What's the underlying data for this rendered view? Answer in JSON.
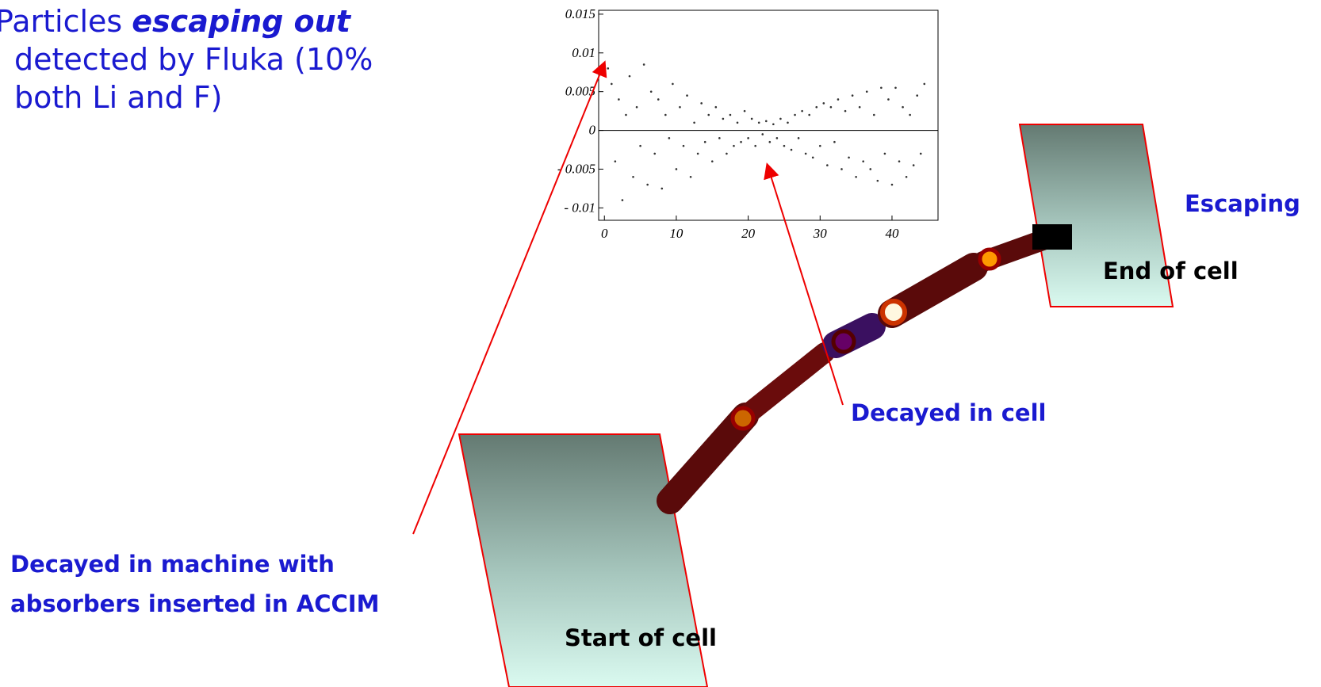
{
  "intro": {
    "line1_plain": "Particles ",
    "line1_emph": "escaping out",
    "line2": "detected by Fluka (10%",
    "line3": "both Li and F)"
  },
  "labels": {
    "escaping": "Escaping",
    "end_of_cell": "End of cell",
    "decayed_in_cell": "Decayed in cell",
    "decayed_machine_1": "Decayed in machine with",
    "decayed_machine_2": "absorbers inserted in ACCIM",
    "start_of_cell": "Start of cell"
  },
  "chart_data": {
    "type": "scatter",
    "color": "#333333",
    "xlim": [
      -0.8,
      46.4
    ],
    "ylim": [
      -0.0116,
      0.0155
    ],
    "xticks": [
      0,
      10,
      20,
      30,
      40
    ],
    "yticks": [
      0.015,
      0.01,
      0.005,
      0,
      {
        "value": -0.005,
        "label": "- 0.005"
      },
      {
        "value": -0.01,
        "label": "- 0.01"
      }
    ],
    "x": [
      0.5,
      1,
      1.5,
      2,
      2.5,
      3,
      3.5,
      4,
      4.5,
      5,
      5.5,
      6,
      6.5,
      7,
      7.5,
      8,
      8.5,
      9,
      9.5,
      10,
      10.5,
      11,
      11.5,
      12,
      12.5,
      13,
      13.5,
      14,
      14.5,
      15,
      15.5,
      16,
      16.5,
      17,
      17.5,
      18,
      18.5,
      19,
      19.5,
      20,
      20.5,
      21,
      21.5,
      22,
      22.5,
      23,
      23.5,
      24,
      24.5,
      25,
      25.5,
      26,
      26.5,
      27,
      27.5,
      28,
      28.5,
      29,
      29.5,
      30,
      30.5,
      31,
      31.5,
      32,
      32.5,
      33,
      33.5,
      34,
      34.5,
      35,
      35.5,
      36,
      36.5,
      37,
      37.5,
      38,
      38.5,
      39,
      39.5,
      40,
      40.5,
      41,
      41.5,
      42,
      42.5,
      43,
      43.5,
      44,
      44.5
    ],
    "values": [
      0.008,
      0.006,
      -0.004,
      0.004,
      -0.009,
      0.002,
      0.007,
      -0.006,
      0.003,
      -0.002,
      0.0085,
      -0.007,
      0.005,
      -0.003,
      0.004,
      -0.0075,
      0.002,
      -0.001,
      0.006,
      -0.005,
      0.003,
      -0.002,
      0.0045,
      -0.006,
      0.001,
      -0.003,
      0.0035,
      -0.0015,
      0.002,
      -0.004,
      0.003,
      -0.001,
      0.0015,
      -0.003,
      0.002,
      -0.002,
      0.001,
      -0.0015,
      0.0025,
      -0.001,
      0.0015,
      -0.002,
      0.001,
      -0.0005,
      0.0012,
      -0.0015,
      0.0008,
      -0.001,
      0.0015,
      -0.002,
      0.001,
      -0.0025,
      0.002,
      -0.001,
      0.0025,
      -0.003,
      0.002,
      -0.0035,
      0.003,
      -0.002,
      0.0035,
      -0.0045,
      0.003,
      -0.0015,
      0.004,
      -0.005,
      0.0025,
      -0.0035,
      0.0045,
      -0.006,
      0.003,
      -0.004,
      0.005,
      -0.005,
      0.002,
      -0.0065,
      0.0055,
      -0.003,
      0.004,
      -0.007,
      0.0055,
      -0.004,
      0.003,
      -0.006,
      0.002,
      -0.0045,
      0.0045,
      -0.003,
      0.006
    ]
  }
}
